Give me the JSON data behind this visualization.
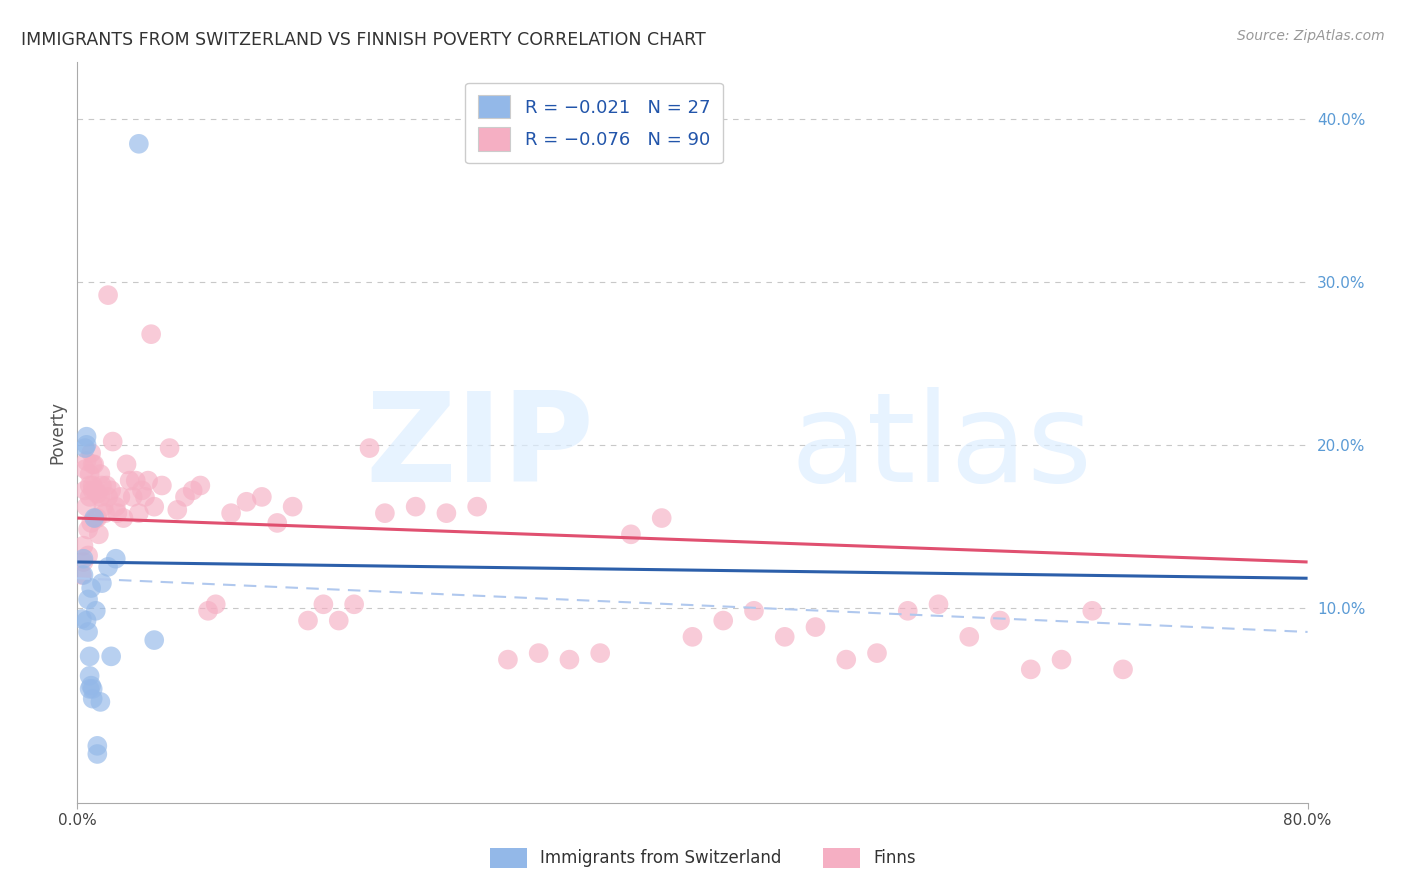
{
  "title": "IMMIGRANTS FROM SWITZERLAND VS FINNISH POVERTY CORRELATION CHART",
  "source": "Source: ZipAtlas.com",
  "ylabel": "Poverty",
  "right_yticks": [
    "10.0%",
    "20.0%",
    "30.0%",
    "40.0%"
  ],
  "right_ytick_vals": [
    0.1,
    0.2,
    0.3,
    0.4
  ],
  "xlim": [
    0.0,
    0.8
  ],
  "ylim": [
    -0.02,
    0.435
  ],
  "legend_label1": "Immigrants from Switzerland",
  "legend_label2": "Finns",
  "blue_scatter_color": "#93b8e8",
  "pink_scatter_color": "#f5afc3",
  "blue_line_color": "#2c5faa",
  "pink_line_color": "#e05070",
  "blue_dash_color": "#b0c8ee",
  "watermark_zip": "ZIP",
  "watermark_atlas": "atlas",
  "background": "#ffffff",
  "grid_color": "#c8c8c8",
  "swiss_x": [
    0.003,
    0.004,
    0.004,
    0.005,
    0.006,
    0.006,
    0.006,
    0.007,
    0.007,
    0.008,
    0.008,
    0.008,
    0.009,
    0.009,
    0.01,
    0.01,
    0.011,
    0.012,
    0.013,
    0.013,
    0.015,
    0.016,
    0.02,
    0.022,
    0.025,
    0.04,
    0.05
  ],
  "swiss_y": [
    0.093,
    0.12,
    0.13,
    0.198,
    0.2,
    0.205,
    0.092,
    0.085,
    0.105,
    0.07,
    0.058,
    0.05,
    0.112,
    0.052,
    0.044,
    0.05,
    0.155,
    0.098,
    0.015,
    0.01,
    0.042,
    0.115,
    0.125,
    0.07,
    0.13,
    0.385,
    0.08
  ],
  "finn_x": [
    0.003,
    0.004,
    0.004,
    0.005,
    0.005,
    0.006,
    0.006,
    0.007,
    0.007,
    0.008,
    0.008,
    0.008,
    0.009,
    0.009,
    0.01,
    0.01,
    0.01,
    0.011,
    0.012,
    0.012,
    0.013,
    0.013,
    0.014,
    0.015,
    0.015,
    0.016,
    0.017,
    0.018,
    0.019,
    0.02,
    0.02,
    0.022,
    0.023,
    0.025,
    0.026,
    0.028,
    0.03,
    0.032,
    0.034,
    0.036,
    0.038,
    0.04,
    0.042,
    0.044,
    0.046,
    0.048,
    0.05,
    0.055,
    0.06,
    0.065,
    0.07,
    0.075,
    0.08,
    0.085,
    0.09,
    0.1,
    0.11,
    0.12,
    0.13,
    0.14,
    0.15,
    0.16,
    0.17,
    0.18,
    0.19,
    0.2,
    0.22,
    0.24,
    0.26,
    0.28,
    0.3,
    0.32,
    0.34,
    0.36,
    0.38,
    0.4,
    0.42,
    0.44,
    0.46,
    0.48,
    0.5,
    0.52,
    0.54,
    0.56,
    0.58,
    0.6,
    0.62,
    0.64,
    0.66,
    0.68
  ],
  "finn_y": [
    0.12,
    0.128,
    0.138,
    0.185,
    0.172,
    0.162,
    0.19,
    0.132,
    0.148,
    0.182,
    0.168,
    0.175,
    0.195,
    0.152,
    0.188,
    0.175,
    0.172,
    0.188,
    0.155,
    0.172,
    0.17,
    0.155,
    0.145,
    0.182,
    0.168,
    0.175,
    0.162,
    0.158,
    0.175,
    0.168,
    0.292,
    0.172,
    0.202,
    0.162,
    0.158,
    0.168,
    0.155,
    0.188,
    0.178,
    0.168,
    0.178,
    0.158,
    0.172,
    0.168,
    0.178,
    0.268,
    0.162,
    0.175,
    0.198,
    0.16,
    0.168,
    0.172,
    0.175,
    0.098,
    0.102,
    0.158,
    0.165,
    0.168,
    0.152,
    0.162,
    0.092,
    0.102,
    0.092,
    0.102,
    0.198,
    0.158,
    0.162,
    0.158,
    0.162,
    0.068,
    0.072,
    0.068,
    0.072,
    0.145,
    0.155,
    0.082,
    0.092,
    0.098,
    0.082,
    0.088,
    0.068,
    0.072,
    0.098,
    0.102,
    0.082,
    0.092,
    0.062,
    0.068,
    0.098,
    0.062
  ],
  "pink_line": [
    0.155,
    0.128
  ],
  "blue_line": [
    0.128,
    0.118
  ],
  "blue_dash": [
    0.118,
    0.085
  ]
}
